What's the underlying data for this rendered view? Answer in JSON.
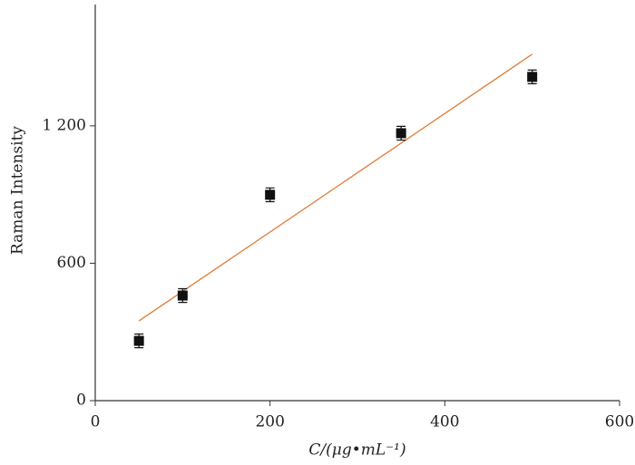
{
  "chart_data": {
    "type": "scatter",
    "x_label": "C/(μg•mL⁻¹)",
    "y_label": "Raman Intensity",
    "x": [
      50,
      100,
      200,
      350,
      500
    ],
    "series": [
      {
        "values": [
          261,
          459,
          899,
          1168,
          1414
        ],
        "errors": [
          30,
          30,
          30,
          30,
          30
        ],
        "color": "#111111"
      }
    ],
    "fit": {
      "x": [
        50,
        500
      ],
      "values": [
        348,
        1513
      ],
      "color": "#e07b39"
    },
    "xlim": [
      0,
      600
    ],
    "xticks": [
      0,
      200,
      400,
      600
    ],
    "ylim": [
      0,
      1730
    ],
    "yticks": [
      0,
      600,
      {
        "value": 1200,
        "label": "1 200"
      }
    ]
  }
}
